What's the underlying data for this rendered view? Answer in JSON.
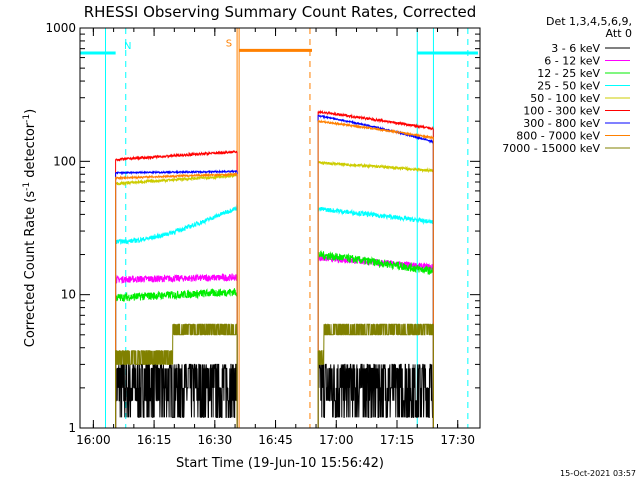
{
  "chart_data": {
    "type": "line",
    "title": "RHESSI Observing Summary Count Rates, Corrected",
    "xlabel": "Start Time (19-Jun-10 15:56:42)",
    "ylabel_main": "Corrected Count Rate (s",
    "ylabel_sup1": "-1",
    "ylabel_mid": " detector",
    "ylabel_sup2": "-1",
    "ylabel_end": ")",
    "yscale": "log",
    "xlim": [
      "15:56:42",
      "17:35:30"
    ],
    "ylim": [
      1,
      1000
    ],
    "x_ticks": [
      "16:00",
      "16:15",
      "16:30",
      "16:45",
      "17:00",
      "17:15",
      "17:30"
    ],
    "y_ticks": [
      {
        "value": 1,
        "label": "1"
      },
      {
        "value": 10,
        "label": "10"
      },
      {
        "value": 100,
        "label": "100"
      },
      {
        "value": 1000,
        "label": "1000"
      }
    ],
    "legend_position": "right-outside",
    "detector_line1": "Det 1,3,4,5,6,9,",
    "detector_line2": "Att 0",
    "timestamp": "15-Oct-2021 03:57",
    "intervals": [
      {
        "start": "16:05:30",
        "end": "16:35:30"
      },
      {
        "start": "16:55:30",
        "end": "17:24:00"
      }
    ],
    "series": [
      {
        "name": "3 - 6 keV",
        "color": "#000000",
        "level1": [
          2.0,
          2.2
        ],
        "level2": [
          2.3,
          2.1
        ],
        "noise": 0.45
      },
      {
        "name": "6 - 12 keV",
        "color": "#ff00ff",
        "level1": [
          13,
          13.5
        ],
        "level2": [
          19,
          16
        ],
        "noise": 0.06
      },
      {
        "name": "12 - 25 keV",
        "color": "#00ee00",
        "level1": [
          9.5,
          10.5
        ],
        "level2": [
          20,
          15
        ],
        "noise": 0.07
      },
      {
        "name": "25 - 50 keV",
        "color": "#00ffff",
        "level1": [
          25,
          45
        ],
        "level2": [
          44,
          35
        ],
        "noise": 0.04
      },
      {
        "name": "50 - 100 keV",
        "color": "#cccc00",
        "level1": [
          68,
          78
        ],
        "level2": [
          98,
          85
        ],
        "noise": 0.025
      },
      {
        "name": "100 - 300 keV",
        "color": "#ff0000",
        "level1": [
          103,
          118
        ],
        "level2": [
          235,
          175
        ],
        "noise": 0.02
      },
      {
        "name": "300 - 800 keV",
        "color": "#0000ff",
        "level1": [
          82,
          84
        ],
        "level2": [
          220,
          140
        ],
        "noise": 0.012
      },
      {
        "name": "800 - 7000 keV",
        "color": "#ff8000",
        "level1": [
          75,
          80
        ],
        "level2": [
          200,
          150
        ],
        "noise": 0.015
      },
      {
        "name": "7000 - 15000 keV",
        "color": "#808000",
        "level1": [
          3.8,
          5.5
        ],
        "level2": [
          4.5,
          6.5
        ],
        "noise": 0.0
      }
    ],
    "flags": [
      {
        "label": "N",
        "color": "#00ffff",
        "start": "15:56:42",
        "end": "16:05:30",
        "level": 650,
        "label_at": "16:08:30",
        "dashed_at": "16:08:00",
        "dash_color": "#00ffff"
      },
      {
        "label": "",
        "color": "#00ffff",
        "start": "17:20:00",
        "end": "17:35:00",
        "level": 650,
        "dashed_at": "17:32:30",
        "dash_color": "#00ffff"
      },
      {
        "label": "S",
        "color": "#ff8000",
        "start": "16:36:00",
        "end": "16:54:00",
        "level": 680,
        "label_at": "16:33:30",
        "dashed_at": "16:53:30",
        "dash_color": "#ff8000"
      }
    ],
    "vertical_lines": [
      {
        "at": "16:03:00",
        "color": "#00ffff"
      },
      {
        "at": "17:20:00",
        "color": "#00ffff"
      },
      {
        "at": "17:24:00",
        "color": "#00ffff"
      },
      {
        "at": "16:36:00",
        "color": "#ff8000"
      },
      {
        "at": "16:35:30",
        "color": "#ff8000"
      }
    ]
  }
}
